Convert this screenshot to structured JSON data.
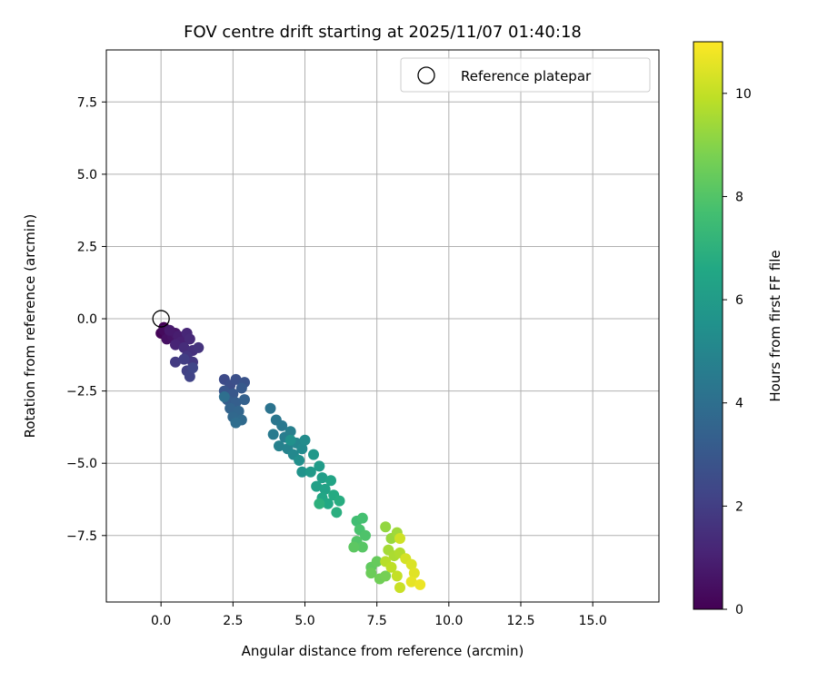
{
  "chart_data": {
    "type": "scatter",
    "title": "FOV centre drift starting at 2025/11/07 01:40:18",
    "xlabel": "Angular distance from reference (arcmin)",
    "ylabel": "Rotation from reference (arcmin)",
    "xlim": [
      -1.9,
      17.3
    ],
    "ylim": [
      -9.8,
      9.3
    ],
    "xticks": [
      0.0,
      2.5,
      5.0,
      7.5,
      10.0,
      12.5,
      15.0
    ],
    "xtick_labels": [
      "0.0",
      "2.5",
      "5.0",
      "7.5",
      "10.0",
      "12.5",
      "15.0"
    ],
    "yticks": [
      7.5,
      5.0,
      2.5,
      0.0,
      -2.5,
      -5.0,
      -7.5
    ],
    "ytick_labels": [
      "7.5",
      "5.0",
      "2.5",
      "0.0",
      "−2.5",
      "−5.0",
      "−7.5"
    ],
    "grid": true,
    "legend": {
      "position": "top-right",
      "entries": [
        "Reference platepar"
      ]
    },
    "reference_point": {
      "x": 0.0,
      "y": 0.0,
      "label": "Reference platepar"
    },
    "colorbar": {
      "label": "Hours from first FF file",
      "range": [
        0,
        11
      ],
      "ticks": [
        0,
        2,
        4,
        6,
        8,
        10
      ],
      "tick_labels": [
        "0",
        "2",
        "4",
        "6",
        "8",
        "10"
      ],
      "colormap": "viridis"
    },
    "points": [
      [
        0.1,
        -0.3,
        0.0
      ],
      [
        0.0,
        -0.5,
        0.1
      ],
      [
        0.2,
        -0.6,
        0.2
      ],
      [
        0.1,
        -0.4,
        0.3
      ],
      [
        0.3,
        -0.5,
        0.4
      ],
      [
        0.2,
        -0.7,
        0.5
      ],
      [
        0.4,
        -0.6,
        0.6
      ],
      [
        0.5,
        -0.5,
        0.7
      ],
      [
        0.3,
        -0.4,
        0.8
      ],
      [
        0.6,
        -0.6,
        0.9
      ],
      [
        0.7,
        -0.8,
        1.0
      ],
      [
        0.5,
        -0.9,
        1.1
      ],
      [
        0.9,
        -0.5,
        1.2
      ],
      [
        1.0,
        -0.7,
        1.3
      ],
      [
        0.8,
        -1.0,
        1.4
      ],
      [
        1.1,
        -1.1,
        1.5
      ],
      [
        1.3,
        -1.0,
        1.6
      ],
      [
        0.9,
        -1.3,
        1.7
      ],
      [
        1.1,
        -1.5,
        1.8
      ],
      [
        0.5,
        -1.5,
        1.9
      ],
      [
        0.8,
        -1.4,
        2.0
      ],
      [
        0.9,
        -1.8,
        2.1
      ],
      [
        1.0,
        -2.0,
        2.2
      ],
      [
        1.1,
        -1.7,
        2.3
      ],
      [
        2.2,
        -2.1,
        2.5
      ],
      [
        2.4,
        -2.3,
        2.6
      ],
      [
        2.6,
        -2.1,
        2.7
      ],
      [
        2.9,
        -2.2,
        2.8
      ],
      [
        2.2,
        -2.5,
        2.9
      ],
      [
        2.5,
        -2.6,
        3.0
      ],
      [
        2.8,
        -2.4,
        3.1
      ],
      [
        2.3,
        -2.8,
        3.2
      ],
      [
        2.6,
        -2.9,
        3.3
      ],
      [
        2.9,
        -2.8,
        3.4
      ],
      [
        2.4,
        -3.1,
        3.5
      ],
      [
        2.7,
        -3.2,
        3.6
      ],
      [
        2.5,
        -3.4,
        3.7
      ],
      [
        2.8,
        -3.5,
        3.8
      ],
      [
        2.6,
        -3.6,
        3.9
      ],
      [
        2.2,
        -2.7,
        4.0
      ],
      [
        3.8,
        -3.1,
        4.2
      ],
      [
        4.0,
        -3.5,
        4.3
      ],
      [
        4.2,
        -3.7,
        4.4
      ],
      [
        3.9,
        -4.0,
        4.5
      ],
      [
        4.3,
        -4.1,
        4.6
      ],
      [
        4.5,
        -3.9,
        4.7
      ],
      [
        4.1,
        -4.4,
        4.8
      ],
      [
        4.4,
        -4.5,
        4.9
      ],
      [
        4.7,
        -4.3,
        5.0
      ],
      [
        4.6,
        -4.7,
        5.1
      ],
      [
        4.9,
        -4.5,
        5.2
      ],
      [
        5.0,
        -4.2,
        5.3
      ],
      [
        4.8,
        -4.9,
        5.4
      ],
      [
        4.5,
        -4.2,
        5.5
      ],
      [
        4.9,
        -5.3,
        5.6
      ],
      [
        5.3,
        -4.7,
        5.8
      ],
      [
        5.2,
        -5.3,
        5.9
      ],
      [
        5.5,
        -5.1,
        6.0
      ],
      [
        5.6,
        -5.5,
        6.1
      ],
      [
        5.4,
        -5.8,
        6.2
      ],
      [
        5.7,
        -5.9,
        6.3
      ],
      [
        5.9,
        -5.6,
        6.4
      ],
      [
        5.6,
        -6.2,
        6.5
      ],
      [
        5.8,
        -6.4,
        6.6
      ],
      [
        6.0,
        -6.1,
        6.7
      ],
      [
        6.2,
        -6.3,
        6.8
      ],
      [
        6.1,
        -6.7,
        6.9
      ],
      [
        5.5,
        -6.4,
        7.0
      ],
      [
        6.8,
        -7.0,
        7.6
      ],
      [
        7.0,
        -6.9,
        7.7
      ],
      [
        6.9,
        -7.3,
        7.8
      ],
      [
        7.1,
        -7.5,
        7.9
      ],
      [
        6.8,
        -7.7,
        8.0
      ],
      [
        7.0,
        -7.9,
        8.1
      ],
      [
        6.7,
        -7.9,
        8.2
      ],
      [
        7.3,
        -8.6,
        8.3
      ],
      [
        7.5,
        -8.4,
        8.4
      ],
      [
        7.3,
        -8.8,
        8.5
      ],
      [
        7.6,
        -9.0,
        8.6
      ],
      [
        7.8,
        -8.9,
        8.7
      ],
      [
        7.8,
        -7.2,
        9.2
      ],
      [
        8.0,
        -7.6,
        9.3
      ],
      [
        8.2,
        -7.4,
        9.4
      ],
      [
        7.9,
        -8.0,
        9.5
      ],
      [
        8.1,
        -8.2,
        9.6
      ],
      [
        8.3,
        -8.1,
        9.7
      ],
      [
        7.8,
        -8.4,
        9.8
      ],
      [
        8.0,
        -8.6,
        9.9
      ],
      [
        8.2,
        -8.9,
        10.0
      ],
      [
        8.3,
        -9.3,
        10.1
      ],
      [
        8.3,
        -7.6,
        10.2
      ],
      [
        8.5,
        -8.3,
        10.3
      ],
      [
        8.7,
        -8.5,
        10.4
      ],
      [
        8.8,
        -8.8,
        10.5
      ],
      [
        8.7,
        -9.1,
        10.6
      ],
      [
        9.0,
        -9.2,
        10.7
      ]
    ]
  }
}
